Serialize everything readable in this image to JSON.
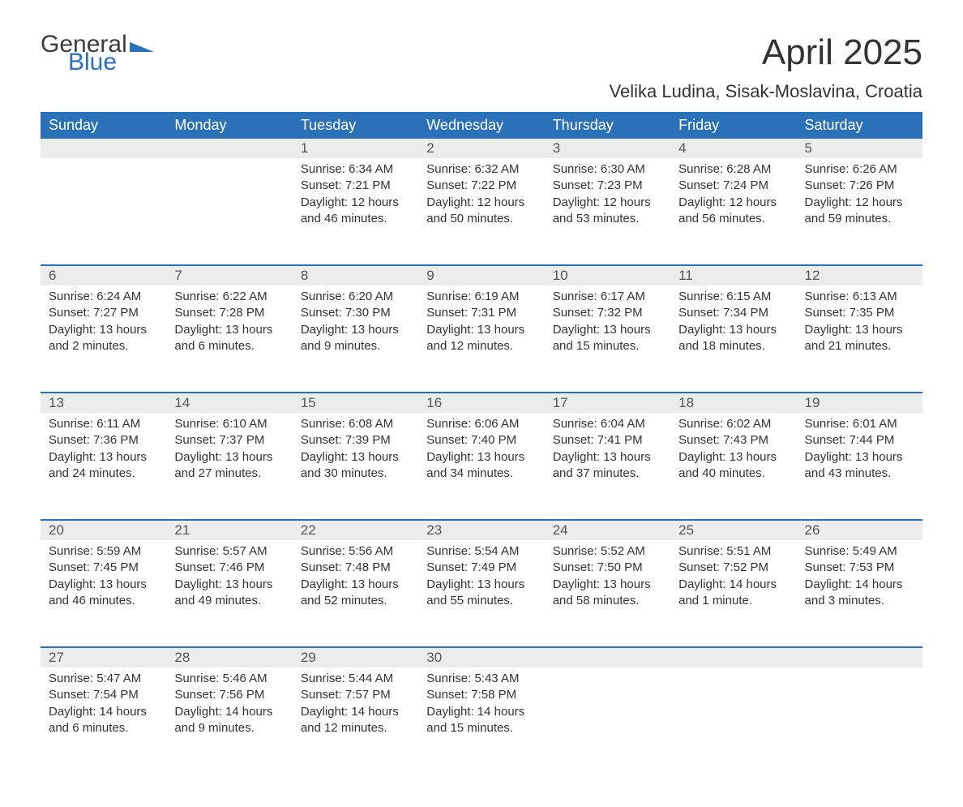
{
  "brand": {
    "line1": "General",
    "line2": "Blue"
  },
  "title": "April 2025",
  "location": "Velika Ludina, Sisak-Moslavina, Croatia",
  "colors": {
    "header_bg": "#2a71b8",
    "header_text": "#ffffff",
    "daynum_bg": "#ececec",
    "row_divider": "#2a71b8",
    "body_bg": "#ffffff",
    "text": "#333333"
  },
  "day_names": [
    "Sunday",
    "Monday",
    "Tuesday",
    "Wednesday",
    "Thursday",
    "Friday",
    "Saturday"
  ],
  "labels": {
    "sunrise": "Sunrise: ",
    "sunset": "Sunset: ",
    "daylight": "Daylight: "
  },
  "weeks": [
    [
      null,
      null,
      {
        "n": "1",
        "sunrise": "6:34 AM",
        "sunset": "7:21 PM",
        "daylight": "12 hours and 46 minutes."
      },
      {
        "n": "2",
        "sunrise": "6:32 AM",
        "sunset": "7:22 PM",
        "daylight": "12 hours and 50 minutes."
      },
      {
        "n": "3",
        "sunrise": "6:30 AM",
        "sunset": "7:23 PM",
        "daylight": "12 hours and 53 minutes."
      },
      {
        "n": "4",
        "sunrise": "6:28 AM",
        "sunset": "7:24 PM",
        "daylight": "12 hours and 56 minutes."
      },
      {
        "n": "5",
        "sunrise": "6:26 AM",
        "sunset": "7:26 PM",
        "daylight": "12 hours and 59 minutes."
      }
    ],
    [
      {
        "n": "6",
        "sunrise": "6:24 AM",
        "sunset": "7:27 PM",
        "daylight": "13 hours and 2 minutes."
      },
      {
        "n": "7",
        "sunrise": "6:22 AM",
        "sunset": "7:28 PM",
        "daylight": "13 hours and 6 minutes."
      },
      {
        "n": "8",
        "sunrise": "6:20 AM",
        "sunset": "7:30 PM",
        "daylight": "13 hours and 9 minutes."
      },
      {
        "n": "9",
        "sunrise": "6:19 AM",
        "sunset": "7:31 PM",
        "daylight": "13 hours and 12 minutes."
      },
      {
        "n": "10",
        "sunrise": "6:17 AM",
        "sunset": "7:32 PM",
        "daylight": "13 hours and 15 minutes."
      },
      {
        "n": "11",
        "sunrise": "6:15 AM",
        "sunset": "7:34 PM",
        "daylight": "13 hours and 18 minutes."
      },
      {
        "n": "12",
        "sunrise": "6:13 AM",
        "sunset": "7:35 PM",
        "daylight": "13 hours and 21 minutes."
      }
    ],
    [
      {
        "n": "13",
        "sunrise": "6:11 AM",
        "sunset": "7:36 PM",
        "daylight": "13 hours and 24 minutes."
      },
      {
        "n": "14",
        "sunrise": "6:10 AM",
        "sunset": "7:37 PM",
        "daylight": "13 hours and 27 minutes."
      },
      {
        "n": "15",
        "sunrise": "6:08 AM",
        "sunset": "7:39 PM",
        "daylight": "13 hours and 30 minutes."
      },
      {
        "n": "16",
        "sunrise": "6:06 AM",
        "sunset": "7:40 PM",
        "daylight": "13 hours and 34 minutes."
      },
      {
        "n": "17",
        "sunrise": "6:04 AM",
        "sunset": "7:41 PM",
        "daylight": "13 hours and 37 minutes."
      },
      {
        "n": "18",
        "sunrise": "6:02 AM",
        "sunset": "7:43 PM",
        "daylight": "13 hours and 40 minutes."
      },
      {
        "n": "19",
        "sunrise": "6:01 AM",
        "sunset": "7:44 PM",
        "daylight": "13 hours and 43 minutes."
      }
    ],
    [
      {
        "n": "20",
        "sunrise": "5:59 AM",
        "sunset": "7:45 PM",
        "daylight": "13 hours and 46 minutes."
      },
      {
        "n": "21",
        "sunrise": "5:57 AM",
        "sunset": "7:46 PM",
        "daylight": "13 hours and 49 minutes."
      },
      {
        "n": "22",
        "sunrise": "5:56 AM",
        "sunset": "7:48 PM",
        "daylight": "13 hours and 52 minutes."
      },
      {
        "n": "23",
        "sunrise": "5:54 AM",
        "sunset": "7:49 PM",
        "daylight": "13 hours and 55 minutes."
      },
      {
        "n": "24",
        "sunrise": "5:52 AM",
        "sunset": "7:50 PM",
        "daylight": "13 hours and 58 minutes."
      },
      {
        "n": "25",
        "sunrise": "5:51 AM",
        "sunset": "7:52 PM",
        "daylight": "14 hours and 1 minute."
      },
      {
        "n": "26",
        "sunrise": "5:49 AM",
        "sunset": "7:53 PM",
        "daylight": "14 hours and 3 minutes."
      }
    ],
    [
      {
        "n": "27",
        "sunrise": "5:47 AM",
        "sunset": "7:54 PM",
        "daylight": "14 hours and 6 minutes."
      },
      {
        "n": "28",
        "sunrise": "5:46 AM",
        "sunset": "7:56 PM",
        "daylight": "14 hours and 9 minutes."
      },
      {
        "n": "29",
        "sunrise": "5:44 AM",
        "sunset": "7:57 PM",
        "daylight": "14 hours and 12 minutes."
      },
      {
        "n": "30",
        "sunrise": "5:43 AM",
        "sunset": "7:58 PM",
        "daylight": "14 hours and 15 minutes."
      },
      null,
      null,
      null
    ]
  ]
}
